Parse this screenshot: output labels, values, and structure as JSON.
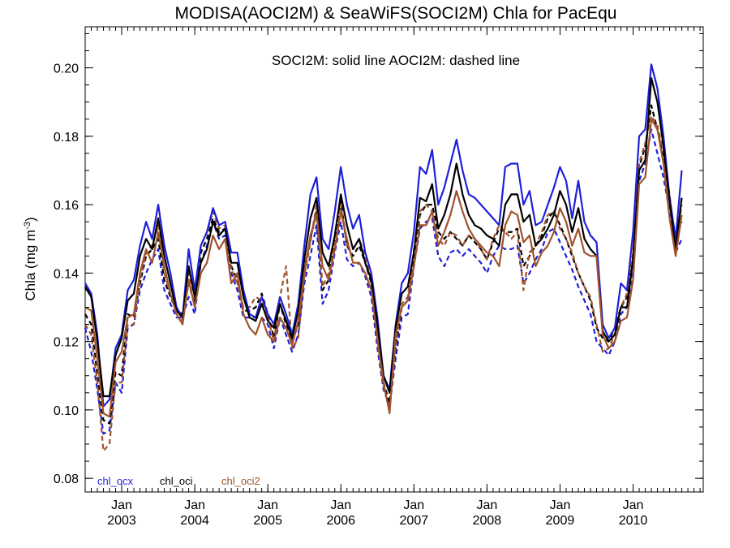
{
  "chart_data": {
    "type": "line",
    "title": "MODISA(AOCI2M) & SeaWiFS(SOCI2M)  Chla for PacEqu",
    "annotation": "SOCI2M: solid line   AOCI2M: dashed line",
    "ylabel_main": "Chla (mg m",
    "ylabel_sup": "-3",
    "ylabel_tail": ")",
    "xlim": [
      2002.5,
      2010.96
    ],
    "ylim": [
      0.076,
      0.212
    ],
    "yticks": [
      {
        "value": 0.08,
        "label": "0.08"
      },
      {
        "value": 0.1,
        "label": "0.10"
      },
      {
        "value": 0.12,
        "label": "0.12"
      },
      {
        "value": 0.14,
        "label": "0.14"
      },
      {
        "value": 0.16,
        "label": "0.16"
      },
      {
        "value": 0.18,
        "label": "0.18"
      },
      {
        "value": 0.2,
        "label": "0.20"
      }
    ],
    "xticks": [
      {
        "value": 2003.0,
        "month": "Jan",
        "year": "2003"
      },
      {
        "value": 2004.0,
        "month": "Jan",
        "year": "2004"
      },
      {
        "value": 2005.0,
        "month": "Jan",
        "year": "2005"
      },
      {
        "value": 2006.0,
        "month": "Jan",
        "year": "2006"
      },
      {
        "value": 2007.0,
        "month": "Jan",
        "year": "2007"
      },
      {
        "value": 2008.0,
        "month": "Jan",
        "year": "2008"
      },
      {
        "value": 2009.0,
        "month": "Jan",
        "year": "2009"
      },
      {
        "value": 2010.0,
        "month": "Jan",
        "year": "2010"
      }
    ],
    "legend": [
      {
        "label": "chl_ocx",
        "color": "#1f1fd9"
      },
      {
        "label": "chl_oci",
        "color": "#000000"
      },
      {
        "label": "chl_oci2",
        "color": "#a0522d"
      }
    ],
    "x_start": 2002.5,
    "x_step": 0.08333,
    "series": [
      {
        "name": "chl_ocx",
        "product": "SOCI2M",
        "color": "#1f1fd9",
        "dash": false,
        "values": [
          0.137,
          0.134,
          0.122,
          0.101,
          0.103,
          0.118,
          0.122,
          0.135,
          0.138,
          0.148,
          0.155,
          0.15,
          0.16,
          0.148,
          0.14,
          0.13,
          0.127,
          0.147,
          0.135,
          0.148,
          0.152,
          0.159,
          0.154,
          0.155,
          0.146,
          0.146,
          0.135,
          0.128,
          0.127,
          0.133,
          0.128,
          0.125,
          0.133,
          0.128,
          0.122,
          0.131,
          0.148,
          0.163,
          0.168,
          0.15,
          0.147,
          0.158,
          0.171,
          0.16,
          0.153,
          0.157,
          0.146,
          0.14,
          0.127,
          0.11,
          0.106,
          0.125,
          0.137,
          0.14,
          0.152,
          0.171,
          0.169,
          0.176,
          0.16,
          0.165,
          0.172,
          0.179,
          0.17,
          0.163,
          0.162,
          0.16,
          0.158,
          0.156,
          0.154,
          0.171,
          0.172,
          0.172,
          0.16,
          0.164,
          0.154,
          0.155,
          0.16,
          0.165,
          0.171,
          0.167,
          0.156,
          0.167,
          0.155,
          0.151,
          0.149,
          0.125,
          0.121,
          0.124,
          0.137,
          0.135,
          0.152,
          0.18,
          0.182,
          0.201,
          0.194,
          0.18,
          0.162,
          0.15,
          0.17
        ]
      },
      {
        "name": "chl_oci",
        "product": "SOCI2M",
        "color": "#000000",
        "dash": false,
        "values": [
          0.136,
          0.133,
          0.12,
          0.104,
          0.104,
          0.116,
          0.121,
          0.132,
          0.134,
          0.145,
          0.15,
          0.147,
          0.156,
          0.145,
          0.137,
          0.129,
          0.127,
          0.142,
          0.133,
          0.143,
          0.147,
          0.155,
          0.151,
          0.153,
          0.143,
          0.143,
          0.133,
          0.127,
          0.126,
          0.131,
          0.126,
          0.124,
          0.131,
          0.126,
          0.121,
          0.129,
          0.144,
          0.156,
          0.162,
          0.146,
          0.142,
          0.151,
          0.163,
          0.154,
          0.147,
          0.15,
          0.143,
          0.138,
          0.125,
          0.11,
          0.105,
          0.124,
          0.134,
          0.136,
          0.146,
          0.162,
          0.161,
          0.166,
          0.153,
          0.157,
          0.163,
          0.172,
          0.163,
          0.157,
          0.154,
          0.153,
          0.151,
          0.15,
          0.148,
          0.16,
          0.163,
          0.163,
          0.155,
          0.157,
          0.148,
          0.15,
          0.153,
          0.157,
          0.164,
          0.16,
          0.152,
          0.159,
          0.15,
          0.147,
          0.145,
          0.123,
          0.12,
          0.122,
          0.13,
          0.13,
          0.144,
          0.17,
          0.173,
          0.197,
          0.19,
          0.177,
          0.161,
          0.147,
          0.162
        ]
      },
      {
        "name": "chl_oci2",
        "product": "SOCI2M",
        "color": "#a0522d",
        "dash": false,
        "values": [
          0.13,
          0.129,
          0.115,
          0.099,
          0.098,
          0.114,
          0.117,
          0.127,
          0.128,
          0.14,
          0.147,
          0.143,
          0.152,
          0.142,
          0.134,
          0.128,
          0.125,
          0.138,
          0.13,
          0.14,
          0.143,
          0.151,
          0.147,
          0.15,
          0.137,
          0.14,
          0.128,
          0.124,
          0.122,
          0.127,
          0.122,
          0.12,
          0.127,
          0.124,
          0.119,
          0.126,
          0.14,
          0.151,
          0.157,
          0.142,
          0.138,
          0.147,
          0.158,
          0.15,
          0.143,
          0.143,
          0.14,
          0.135,
          0.121,
          0.108,
          0.099,
          0.122,
          0.13,
          0.132,
          0.142,
          0.154,
          0.154,
          0.158,
          0.148,
          0.152,
          0.157,
          0.164,
          0.158,
          0.153,
          0.15,
          0.148,
          0.146,
          0.145,
          0.142,
          0.154,
          0.158,
          0.157,
          0.149,
          0.151,
          0.142,
          0.146,
          0.148,
          0.152,
          0.159,
          0.155,
          0.148,
          0.153,
          0.146,
          0.145,
          0.145,
          0.122,
          0.118,
          0.12,
          0.126,
          0.127,
          0.138,
          0.166,
          0.168,
          0.185,
          0.182,
          0.172,
          0.156,
          0.145,
          0.157
        ]
      },
      {
        "name": "chl_ocx",
        "product": "AOCI2M",
        "color": "#1f1fd9",
        "dash": true,
        "values": [
          0.124,
          0.117,
          0.106,
          0.093,
          0.094,
          0.108,
          0.105,
          0.124,
          0.125,
          0.135,
          0.14,
          0.144,
          0.147,
          0.135,
          0.131,
          0.127,
          0.127,
          0.133,
          0.128,
          0.143,
          0.148,
          0.155,
          0.15,
          0.151,
          0.14,
          0.135,
          0.127,
          0.127,
          0.127,
          0.127,
          0.125,
          0.118,
          0.127,
          0.122,
          0.117,
          0.122,
          0.137,
          0.145,
          0.154,
          0.131,
          0.135,
          0.146,
          0.155,
          0.144,
          0.142,
          0.143,
          0.139,
          0.133,
          0.118,
          0.106,
          0.101,
          0.115,
          0.127,
          0.128,
          0.142,
          0.153,
          0.155,
          0.156,
          0.145,
          0.142,
          0.146,
          0.147,
          0.145,
          0.147,
          0.145,
          0.143,
          0.14,
          0.145,
          0.148,
          0.147,
          0.147,
          0.148,
          0.137,
          0.14,
          0.144,
          0.147,
          0.152,
          0.153,
          0.149,
          0.145,
          0.141,
          0.136,
          0.132,
          0.128,
          0.12,
          0.118,
          0.116,
          0.12,
          0.128,
          0.13,
          0.14,
          0.167,
          0.172,
          0.182,
          0.175,
          0.168,
          0.158,
          0.146,
          0.15
        ]
      },
      {
        "name": "chl_oci",
        "product": "AOCI2M",
        "color": "#000000",
        "dash": true,
        "values": [
          0.128,
          0.125,
          0.11,
          0.097,
          0.096,
          0.111,
          0.11,
          0.128,
          0.127,
          0.137,
          0.145,
          0.147,
          0.15,
          0.138,
          0.133,
          0.129,
          0.128,
          0.137,
          0.131,
          0.146,
          0.15,
          0.156,
          0.152,
          0.153,
          0.142,
          0.138,
          0.129,
          0.129,
          0.13,
          0.134,
          0.128,
          0.121,
          0.131,
          0.125,
          0.12,
          0.125,
          0.141,
          0.15,
          0.158,
          0.135,
          0.138,
          0.15,
          0.161,
          0.148,
          0.145,
          0.148,
          0.143,
          0.137,
          0.121,
          0.108,
          0.102,
          0.118,
          0.13,
          0.132,
          0.145,
          0.157,
          0.16,
          0.16,
          0.152,
          0.15,
          0.152,
          0.15,
          0.148,
          0.151,
          0.149,
          0.147,
          0.144,
          0.149,
          0.153,
          0.152,
          0.152,
          0.153,
          0.142,
          0.145,
          0.148,
          0.151,
          0.156,
          0.158,
          0.154,
          0.15,
          0.145,
          0.14,
          0.136,
          0.132,
          0.124,
          0.121,
          0.12,
          0.124,
          0.13,
          0.133,
          0.145,
          0.171,
          0.177,
          0.189,
          0.182,
          0.174,
          0.162,
          0.15,
          0.155
        ]
      },
      {
        "name": "chl_oci2",
        "product": "AOCI2M",
        "color": "#a0522d",
        "dash": true,
        "values": [
          0.125,
          0.122,
          0.108,
          0.088,
          0.09,
          0.108,
          0.108,
          0.125,
          0.125,
          0.138,
          0.146,
          0.148,
          0.154,
          0.14,
          0.134,
          0.13,
          0.126,
          0.14,
          0.133,
          0.148,
          0.152,
          0.158,
          0.153,
          0.154,
          0.141,
          0.137,
          0.13,
          0.13,
          0.133,
          0.132,
          0.127,
          0.12,
          0.133,
          0.142,
          0.118,
          0.121,
          0.139,
          0.149,
          0.16,
          0.136,
          0.14,
          0.15,
          0.16,
          0.148,
          0.147,
          0.15,
          0.145,
          0.138,
          0.12,
          0.107,
          0.1,
          0.119,
          0.131,
          0.133,
          0.147,
          0.158,
          0.16,
          0.158,
          0.15,
          0.148,
          0.152,
          0.151,
          0.148,
          0.151,
          0.15,
          0.147,
          0.144,
          0.15,
          0.154,
          0.152,
          0.15,
          0.152,
          0.135,
          0.146,
          0.148,
          0.152,
          0.157,
          0.158,
          0.153,
          0.15,
          0.146,
          0.14,
          0.136,
          0.133,
          0.125,
          0.117,
          0.118,
          0.122,
          0.13,
          0.134,
          0.146,
          0.172,
          0.178,
          0.186,
          0.183,
          0.176,
          0.163,
          0.148,
          0.16
        ]
      }
    ]
  }
}
